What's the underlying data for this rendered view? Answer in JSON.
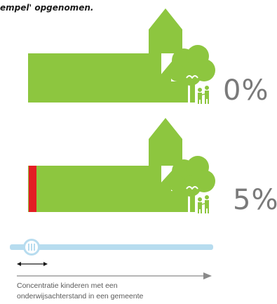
{
  "caption": "empel' opgenomen.",
  "scenes": [
    {
      "percentage": "0%",
      "segregation_fraction": 0.0
    },
    {
      "percentage": "5%",
      "segregation_fraction": 0.05
    }
  ],
  "slider": {
    "label_line1": "Concentratie kinderen met een",
    "label_line2": "onderwijsachterstand in een gemeente"
  },
  "colors": {
    "green": "#8dc63f",
    "red": "#e31e24",
    "slider": "#b7dcef",
    "grey_text": "#7a7a7a",
    "arrow": "#8a8a8a"
  },
  "icons": [
    "church-icon",
    "tree-icon",
    "children-icon",
    "slider-knob-icon",
    "double-arrow-icon",
    "right-arrow-icon"
  ]
}
